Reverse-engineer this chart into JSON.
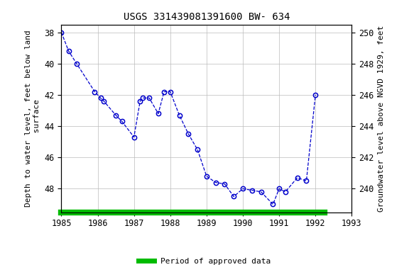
{
  "title": "USGS 331439081391600 BW- 634",
  "ylabel_left": "Depth to water level, feet below land\n surface",
  "ylabel_right": "Groundwater level above NGVD 1929, feet",
  "x_data": [
    1985.0,
    1985.2,
    1985.42,
    1985.92,
    1986.08,
    1986.17,
    1986.5,
    1986.67,
    1987.0,
    1987.17,
    1987.25,
    1987.42,
    1987.67,
    1987.83,
    1988.0,
    1988.25,
    1988.5,
    1988.75,
    1989.0,
    1989.25,
    1989.5,
    1989.75,
    1990.0,
    1990.25,
    1990.5,
    1990.83,
    1991.0,
    1991.17,
    1991.5,
    1991.75,
    1992.0
  ],
  "y_data": [
    38.0,
    39.2,
    40.0,
    41.8,
    42.2,
    42.4,
    43.3,
    43.7,
    44.7,
    42.4,
    42.2,
    42.2,
    43.2,
    41.8,
    41.8,
    43.3,
    44.5,
    45.5,
    47.2,
    47.6,
    47.7,
    48.5,
    48.0,
    48.1,
    48.2,
    49.0,
    48.0,
    48.2,
    47.3,
    47.5,
    42.0
  ],
  "xlim": [
    1985.0,
    1993.0
  ],
  "ylim_left": [
    49.5,
    37.5
  ],
  "ylim_right": [
    238.5,
    250.5
  ],
  "xticks": [
    1985,
    1986,
    1987,
    1988,
    1989,
    1990,
    1991,
    1992,
    1993
  ],
  "yticks_left": [
    38,
    40,
    42,
    44,
    46,
    48
  ],
  "yticks_right": [
    250,
    248,
    246,
    244,
    242,
    240
  ],
  "line_color": "#0000CC",
  "marker_color": "#0000CC",
  "background_color": "#ffffff",
  "grid_color": "#bbbbbb",
  "legend_label": "Period of approved data",
  "legend_color": "#00bb00",
  "approved_bar_xmin": 1985.0,
  "approved_bar_xmax": 1992.25,
  "title_fontsize": 10,
  "label_fontsize": 8,
  "tick_fontsize": 8.5
}
